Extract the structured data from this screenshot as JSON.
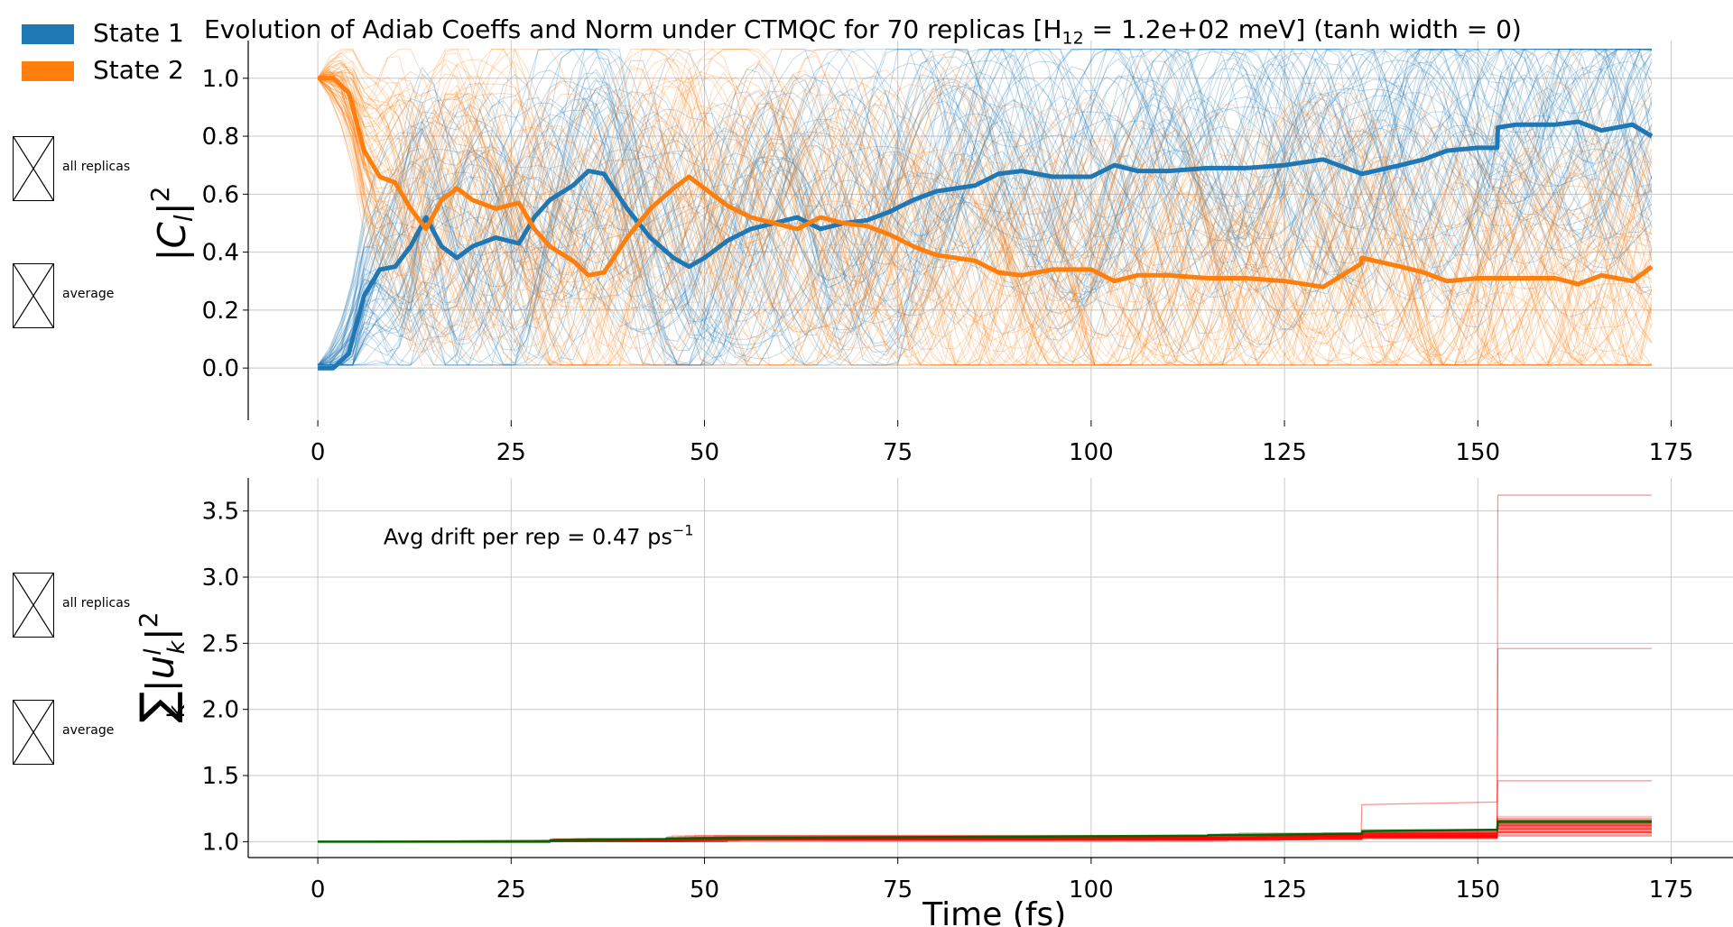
{
  "title_parts": {
    "pre": "Evolution of Adiab Coeffs and Norm under CTMQC for 70 replicas [H",
    "sub": "12",
    "post": " = 1.2e+02 meV]   (tanh width = 0)"
  },
  "legend": [
    {
      "label": "State 1",
      "color": "#1f77b4"
    },
    {
      "label": "State 2",
      "color": "#ff7f0e"
    }
  ],
  "toggles": {
    "top_all": "all replicas",
    "top_avg": "average",
    "bottom_all": "all replicas",
    "bottom_avg": "average"
  },
  "chart_data": [
    {
      "type": "line",
      "panel": "top",
      "ylabel": "|C_l|^2",
      "xlim": [
        -9,
        183
      ],
      "ylim": [
        -0.18,
        1.13
      ],
      "xticks": [
        0,
        25,
        50,
        75,
        100,
        125,
        150,
        175
      ],
      "yticks": [
        0.0,
        0.2,
        0.4,
        0.6,
        0.8,
        1.0
      ],
      "grid": true,
      "replica_count": 70,
      "series": [
        {
          "name": "State 1",
          "color": "#1f77b4",
          "role": "average",
          "x": [
            0,
            2,
            4,
            6,
            8,
            10,
            12,
            14,
            16,
            18,
            20,
            23,
            26,
            28,
            30,
            33,
            35,
            37,
            40,
            43,
            46,
            48,
            50,
            53,
            56,
            59,
            62,
            65,
            68,
            71,
            74,
            77,
            80,
            85,
            88,
            91,
            95,
            100,
            103,
            106,
            110,
            115,
            120,
            125,
            130,
            135,
            140,
            143,
            146,
            150,
            152.5,
            152.6,
            155,
            160,
            163,
            166,
            170,
            172.5
          ],
          "values": [
            0.0,
            0.0,
            0.05,
            0.25,
            0.34,
            0.35,
            0.42,
            0.52,
            0.42,
            0.38,
            0.42,
            0.45,
            0.43,
            0.52,
            0.58,
            0.63,
            0.68,
            0.67,
            0.55,
            0.45,
            0.38,
            0.35,
            0.38,
            0.44,
            0.48,
            0.5,
            0.52,
            0.48,
            0.5,
            0.51,
            0.54,
            0.58,
            0.61,
            0.63,
            0.67,
            0.68,
            0.66,
            0.66,
            0.7,
            0.68,
            0.68,
            0.69,
            0.69,
            0.7,
            0.72,
            0.67,
            0.7,
            0.72,
            0.75,
            0.76,
            0.76,
            0.83,
            0.84,
            0.84,
            0.85,
            0.82,
            0.84,
            0.8
          ]
        },
        {
          "name": "State 2",
          "color": "#ff7f0e",
          "role": "average",
          "x": [
            0,
            2,
            4,
            6,
            8,
            10,
            12,
            14,
            16,
            18,
            20,
            23,
            26,
            28,
            30,
            33,
            35,
            37,
            40,
            43,
            46,
            48,
            50,
            53,
            56,
            59,
            62,
            65,
            68,
            71,
            74,
            77,
            80,
            85,
            88,
            91,
            95,
            100,
            103,
            106,
            110,
            115,
            120,
            125,
            130,
            134.9,
            135,
            140,
            143,
            146,
            150,
            152.5,
            155,
            160,
            163,
            166,
            170,
            172.5
          ],
          "values": [
            1.0,
            1.0,
            0.95,
            0.75,
            0.66,
            0.64,
            0.55,
            0.48,
            0.58,
            0.62,
            0.58,
            0.55,
            0.57,
            0.48,
            0.42,
            0.37,
            0.32,
            0.33,
            0.45,
            0.55,
            0.62,
            0.66,
            0.62,
            0.56,
            0.52,
            0.5,
            0.48,
            0.52,
            0.5,
            0.49,
            0.46,
            0.42,
            0.39,
            0.37,
            0.33,
            0.32,
            0.34,
            0.34,
            0.3,
            0.32,
            0.32,
            0.31,
            0.31,
            0.3,
            0.28,
            0.36,
            0.38,
            0.35,
            0.33,
            0.3,
            0.31,
            0.31,
            0.31,
            0.31,
            0.29,
            0.32,
            0.3,
            0.35
          ]
        }
      ]
    },
    {
      "type": "line",
      "panel": "bottom",
      "xlabel": "Time (fs)",
      "ylabel": "Σ_k |u_k^l|^2",
      "xlim": [
        -9,
        183
      ],
      "ylim": [
        0.88,
        3.75
      ],
      "xticks": [
        0,
        25,
        50,
        75,
        100,
        125,
        150,
        175
      ],
      "yticks": [
        1.0,
        1.5,
        2.0,
        2.5,
        3.0,
        3.5
      ],
      "grid": true,
      "annotation": "Avg drift per rep = 0.47 ps",
      "annotation_sup": "−1",
      "series": [
        {
          "name": "average",
          "color": "#006400",
          "role": "average",
          "x": [
            0,
            30,
            30.1,
            45,
            45.1,
            115,
            115.1,
            135,
            135.1,
            152.5,
            152.6,
            172.5
          ],
          "values": [
            1.0,
            1.0,
            1.01,
            1.02,
            1.025,
            1.045,
            1.05,
            1.06,
            1.08,
            1.09,
            1.15,
            1.15
          ]
        }
      ],
      "replica_outliers": [
        {
          "x": [
            0,
            152.5,
            152.6,
            172.5
          ],
          "values": [
            1.0,
            1.06,
            3.62,
            3.62
          ]
        },
        {
          "x": [
            0,
            152.5,
            152.6,
            172.5
          ],
          "values": [
            1.0,
            1.05,
            2.46,
            2.46
          ]
        },
        {
          "x": [
            0,
            134.9,
            135,
            152.5,
            152.6,
            172.5
          ],
          "values": [
            1.0,
            1.04,
            1.28,
            1.3,
            1.46,
            1.46
          ]
        }
      ]
    }
  ]
}
